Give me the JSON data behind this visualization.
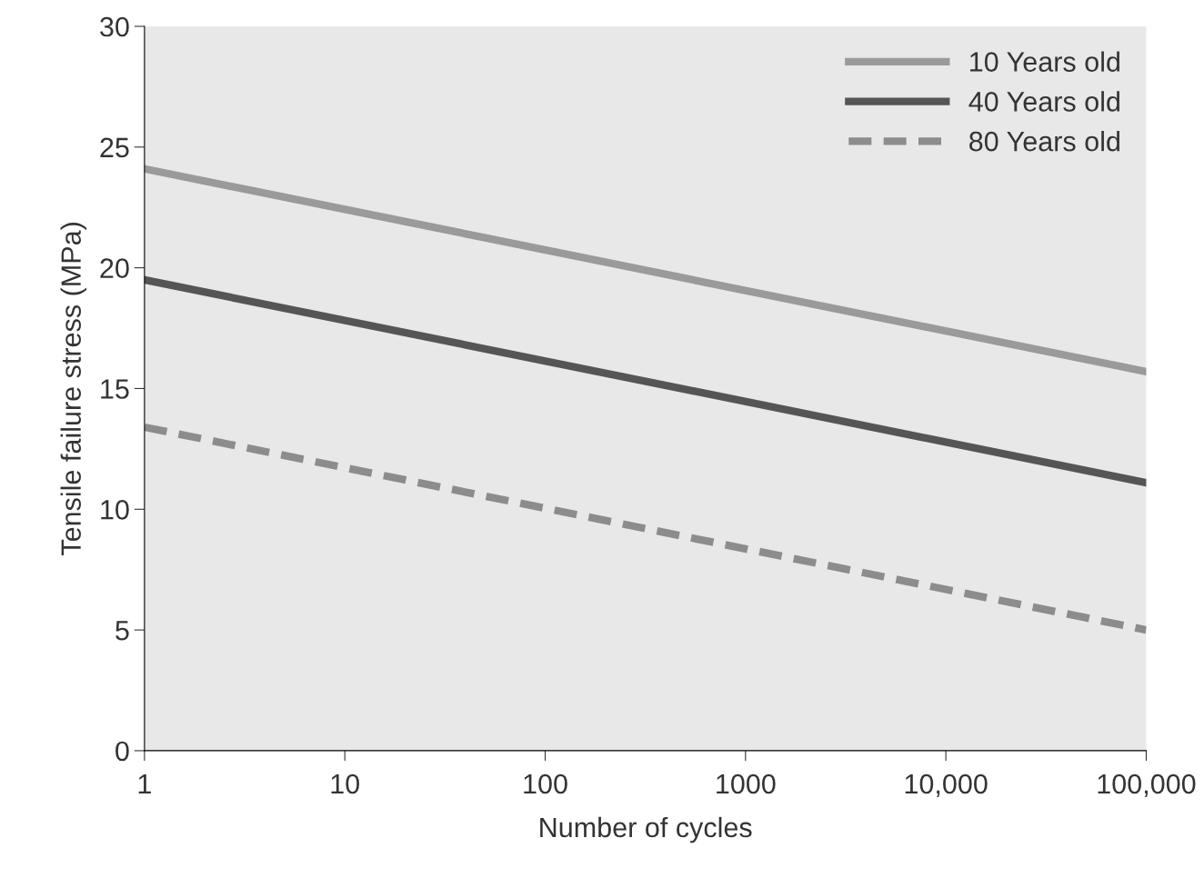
{
  "chart_data": {
    "type": "line",
    "xlabel": "Number of cycles",
    "ylabel": "Tensile failure stress (MPa)",
    "x": [
      1,
      100000
    ],
    "series": [
      {
        "name": "10 Years old",
        "color": "#9a9a9a",
        "values": [
          24.1,
          15.7
        ],
        "line_style": "solid"
      },
      {
        "name": "40 Years old",
        "color": "#555555",
        "values": [
          19.5,
          11.1
        ],
        "line_style": "solid"
      },
      {
        "name": "80 Years old",
        "color": "#8c8c8c",
        "values": [
          13.4,
          5.0
        ],
        "line_style": "dashed"
      }
    ],
    "log": "x",
    "xlim": [
      1,
      100000
    ],
    "ylim": [
      0,
      30
    ],
    "xticks": [
      1,
      10,
      100,
      1000,
      {
        "value": 10000,
        "label": "10,000"
      },
      {
        "value": 100000,
        "label": "100,000"
      }
    ],
    "yticks": [
      0,
      5,
      10,
      15,
      20,
      25,
      30
    ],
    "legend": "top right",
    "grid": false,
    "marker": "none"
  }
}
